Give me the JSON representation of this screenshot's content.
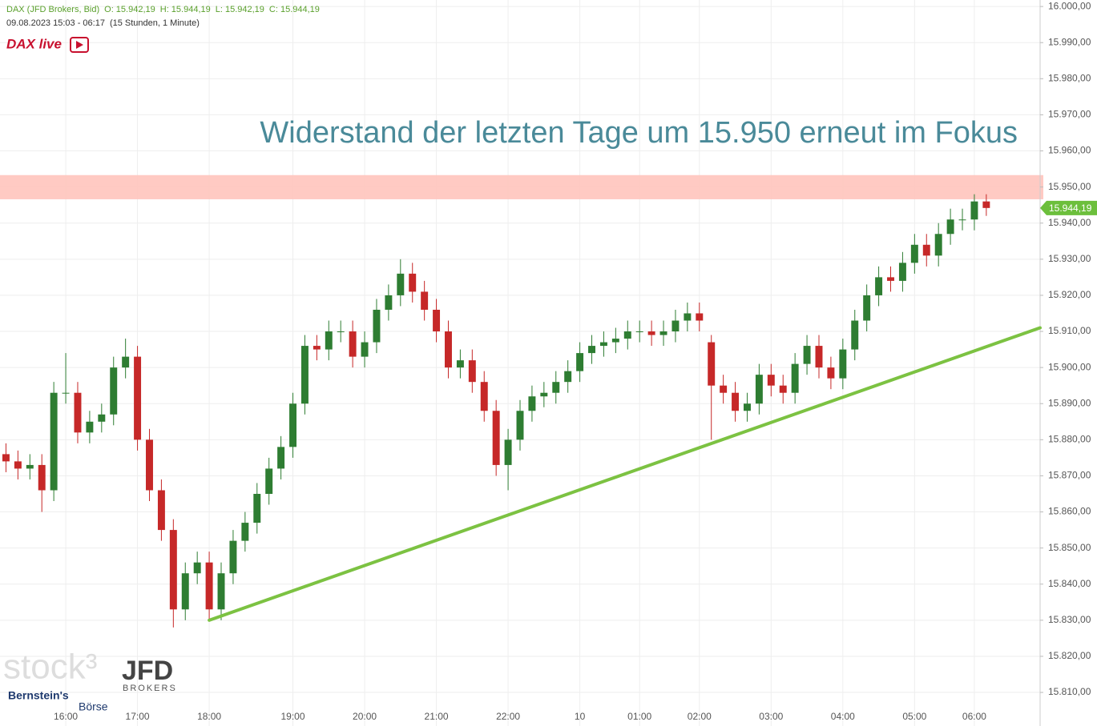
{
  "header": {
    "symbol": "DAX (JFD Brokers, Bid)",
    "open": "O: 15.942,19",
    "high": "H: 15.944,19",
    "low": "L: 15.942,19",
    "close": "C: 15.944,19",
    "range": "09.08.2023 15:03 - 06:17",
    "span": "(15 Stunden, 1 Minute)"
  },
  "logos": {
    "dax_live": "DAX live",
    "stock": "stock³",
    "jfd": "JFD",
    "brokers": "BROKERS",
    "bernstein": "Bernstein's",
    "boerse": "Börse"
  },
  "chart_data": {
    "type": "candlestick",
    "annotation": "Widerstand der letzten Tage um 15.950 erneut im Fokus",
    "categories": [
      null,
      null,
      null,
      null,
      null,
      "16:00",
      null,
      null,
      null,
      null,
      null,
      "17:00",
      null,
      null,
      null,
      null,
      null,
      "18:00",
      null,
      null,
      null,
      null,
      null,
      null,
      "19:00",
      null,
      null,
      null,
      null,
      null,
      "20:00",
      null,
      null,
      null,
      null,
      null,
      "21:00",
      null,
      null,
      null,
      null,
      null,
      "22:00",
      null,
      null,
      null,
      null,
      null,
      "10",
      null,
      null,
      null,
      null,
      "01:00",
      null,
      null,
      null,
      null,
      "02:00",
      null,
      null,
      null,
      null,
      null,
      "03:00",
      null,
      null,
      null,
      null,
      null,
      "04:00",
      null,
      null,
      null,
      null,
      null,
      "05:00",
      null,
      null,
      null,
      null,
      "06:00",
      null,
      null,
      null,
      null,
      null
    ],
    "open": [
      15876,
      15874,
      15872,
      15873,
      15866,
      15893,
      15893,
      15882,
      15885,
      15887,
      15900,
      15903,
      15880,
      15866,
      15855,
      15833,
      15843,
      15846,
      15833,
      15843,
      15852,
      15857,
      15865,
      15872,
      15878,
      15890,
      15906,
      15905,
      15910,
      15910,
      15903,
      15907,
      15916,
      15920,
      15926,
      15921,
      15916,
      15910,
      15900,
      15902,
      15896,
      15888,
      15873,
      15880,
      15888,
      15892,
      15893,
      15896,
      15899,
      15904,
      15906,
      15907,
      15908,
      15910,
      15910,
      15909,
      15910,
      15913,
      15915,
      15907,
      15895,
      15893,
      15888,
      15890,
      15898,
      15895,
      15893,
      15901,
      15906,
      15900,
      15897,
      15905,
      15913,
      15920,
      15925,
      15924,
      15929,
      15934,
      15931,
      15937,
      15941,
      15941,
      15946,
      null,
      null,
      null,
      null
    ],
    "high": [
      15879,
      15877,
      15876,
      15876,
      15896,
      15904,
      15896,
      15888,
      15890,
      15903,
      15908,
      15906,
      15883,
      15869,
      15858,
      15846,
      15849,
      15849,
      15846,
      15855,
      15860,
      15868,
      15875,
      15881,
      15893,
      15909,
      15909,
      15913,
      15913,
      15913,
      15910,
      15919,
      15923,
      15930,
      15929,
      15924,
      15919,
      15913,
      15905,
      15905,
      15899,
      15891,
      15883,
      15891,
      15895,
      15896,
      15899,
      15902,
      15907,
      15909,
      15910,
      15911,
      15913,
      15913,
      15913,
      15913,
      15916,
      15918,
      15918,
      15909,
      15898,
      15896,
      15893,
      15901,
      15901,
      15898,
      15904,
      15909,
      15909,
      15903,
      15908,
      15916,
      15923,
      15928,
      15928,
      15932,
      15937,
      15937,
      15940,
      15944,
      15944,
      15948,
      15948,
      null,
      null,
      null,
      null
    ],
    "low": [
      15871,
      15869,
      15869,
      15860,
      15863,
      15890,
      15879,
      15879,
      15882,
      15884,
      15897,
      15877,
      15863,
      15852,
      15828,
      15830,
      15840,
      15830,
      15830,
      15840,
      15849,
      15854,
      15862,
      15869,
      15875,
      15887,
      15902,
      15902,
      15907,
      15900,
      15900,
      15904,
      15913,
      15917,
      15918,
      15913,
      15907,
      15897,
      15897,
      15893,
      15885,
      15870,
      15866,
      15877,
      15885,
      15889,
      15890,
      15893,
      15896,
      15901,
      15903,
      15904,
      15905,
      15907,
      15906,
      15906,
      15907,
      15910,
      15910,
      15880,
      15890,
      15885,
      15885,
      15887,
      15892,
      15890,
      15890,
      15898,
      15897,
      15894,
      15894,
      15902,
      15910,
      15917,
      15921,
      15921,
      15926,
      15928,
      15928,
      15934,
      15938,
      15938,
      15942,
      null,
      null,
      null,
      null
    ],
    "close": [
      15874,
      15872,
      15873,
      15866,
      15893,
      15893,
      15882,
      15885,
      15887,
      15900,
      15903,
      15880,
      15866,
      15855,
      15833,
      15843,
      15846,
      15833,
      15843,
      15852,
      15857,
      15865,
      15872,
      15878,
      15890,
      15906,
      15905,
      15910,
      15910,
      15903,
      15907,
      15916,
      15920,
      15926,
      15921,
      15916,
      15910,
      15900,
      15902,
      15896,
      15888,
      15873,
      15880,
      15888,
      15892,
      15893,
      15896,
      15899,
      15904,
      15906,
      15907,
      15908,
      15910,
      15910,
      15909,
      15910,
      15913,
      15915,
      15913,
      15895,
      15893,
      15888,
      15890,
      15898,
      15895,
      15893,
      15901,
      15906,
      15900,
      15897,
      15905,
      15913,
      15920,
      15925,
      15924,
      15929,
      15934,
      15931,
      15937,
      15941,
      15941,
      15946,
      15944.19,
      null,
      null,
      null,
      null
    ],
    "up_color": "#2e7d32",
    "down_color": "#c62828",
    "resistance": {
      "low": 15946.6,
      "high": 15953.3,
      "color": "#ffc4bd"
    },
    "trendline": {
      "start": 15830,
      "end": 15911,
      "color": "#7cc242"
    },
    "last_price": {
      "value": 15944.19,
      "label": "15.944,19",
      "color": "#6cbf3c"
    },
    "ylim": [
      15800.7,
      16001.8
    ],
    "yticks": [
      {
        "value": 15810,
        "label": "15.810,00"
      },
      {
        "value": 15820,
        "label": "15.820,00"
      },
      {
        "value": 15830,
        "label": "15.830,00"
      },
      {
        "value": 15840,
        "label": "15.840,00"
      },
      {
        "value": 15850,
        "label": "15.850,00"
      },
      {
        "value": 15860,
        "label": "15.860,00"
      },
      {
        "value": 15870,
        "label": "15.870,00"
      },
      {
        "value": 15880,
        "label": "15.880,00"
      },
      {
        "value": 15890,
        "label": "15.890,00"
      },
      {
        "value": 15900,
        "label": "15.900,00"
      },
      {
        "value": 15910,
        "label": "15.910,00"
      },
      {
        "value": 15920,
        "label": "15.920,00"
      },
      {
        "value": 15930,
        "label": "15.930,00"
      },
      {
        "value": 15940,
        "label": "15.940,00"
      },
      {
        "value": 15950,
        "label": "15.950,00"
      },
      {
        "value": 15960,
        "label": "15.960,00"
      },
      {
        "value": 15970,
        "label": "15.970,00"
      },
      {
        "value": 15980,
        "label": "15.980,00"
      },
      {
        "value": 15990,
        "label": "15.990,00"
      },
      {
        "value": 16000,
        "label": "16.000,00"
      }
    ],
    "grid": true
  }
}
